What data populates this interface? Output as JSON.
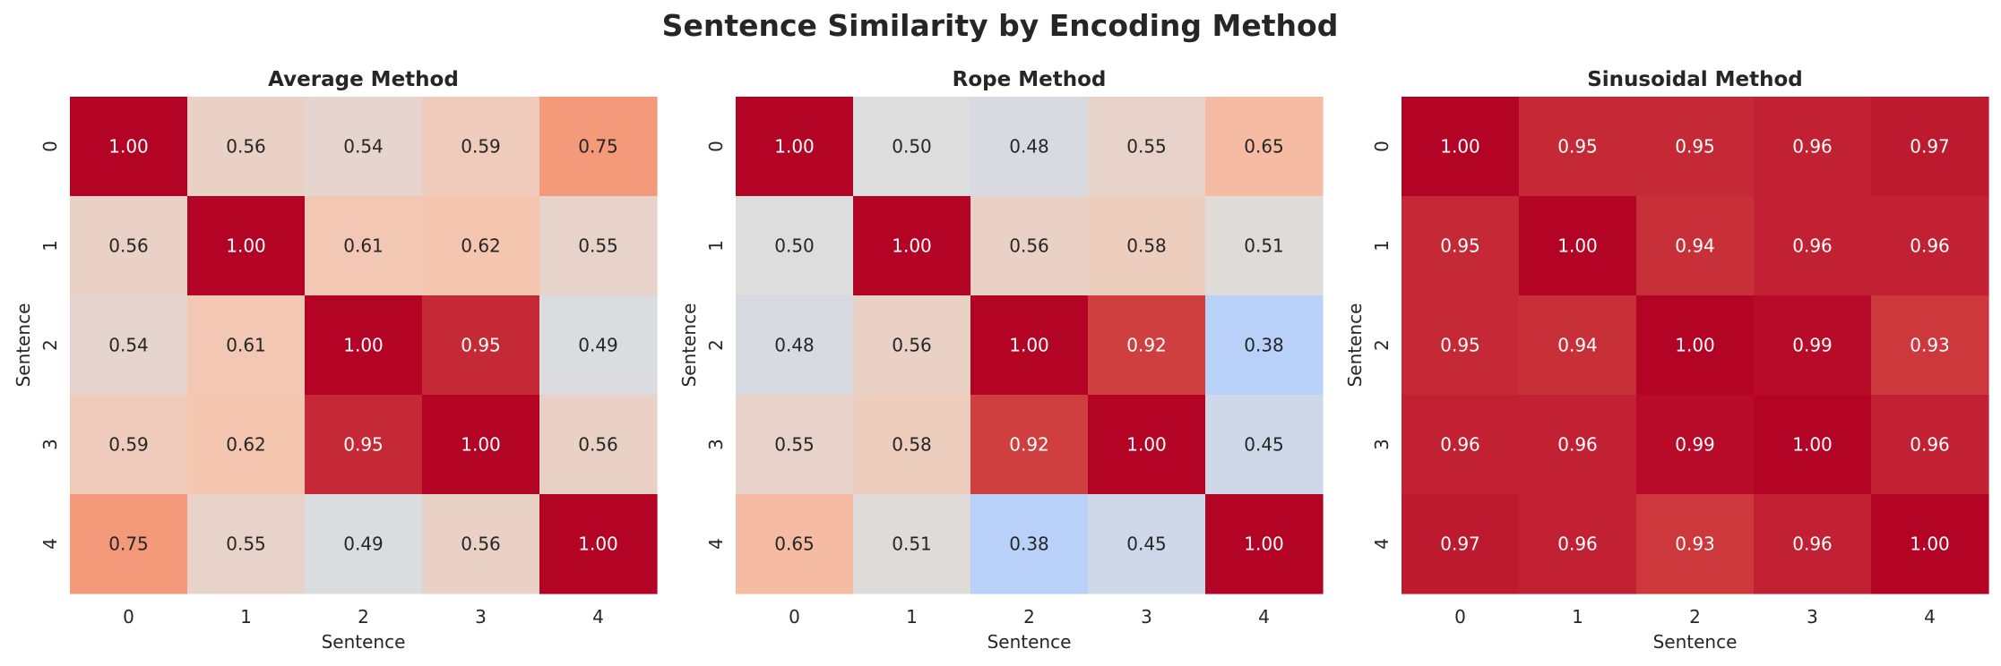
{
  "figure": {
    "title": "Sentence Similarity by Encoding Method"
  },
  "chart_data": [
    {
      "type": "heatmap",
      "title": "Average Method",
      "xlabel": "Sentence",
      "ylabel": "Sentence",
      "x_ticks": [
        "0",
        "1",
        "2",
        "3",
        "4"
      ],
      "y_ticks": [
        "0",
        "1",
        "2",
        "3",
        "4"
      ],
      "values": [
        [
          1.0,
          0.56,
          0.54,
          0.59,
          0.75
        ],
        [
          0.56,
          1.0,
          0.61,
          0.62,
          0.55
        ],
        [
          0.54,
          0.61,
          1.0,
          0.95,
          0.49
        ],
        [
          0.59,
          0.62,
          0.95,
          1.0,
          0.56
        ],
        [
          0.75,
          0.55,
          0.49,
          0.56,
          1.0
        ]
      ],
      "colormap": "coolwarm",
      "color_range": [
        0,
        1
      ],
      "colorbar": false
    },
    {
      "type": "heatmap",
      "title": "Rope Method",
      "xlabel": "Sentence",
      "ylabel": "Sentence",
      "x_ticks": [
        "0",
        "1",
        "2",
        "3",
        "4"
      ],
      "y_ticks": [
        "0",
        "1",
        "2",
        "3",
        "4"
      ],
      "values": [
        [
          1.0,
          0.5,
          0.48,
          0.55,
          0.65
        ],
        [
          0.5,
          1.0,
          0.56,
          0.58,
          0.51
        ],
        [
          0.48,
          0.56,
          1.0,
          0.92,
          0.38
        ],
        [
          0.55,
          0.58,
          0.92,
          1.0,
          0.45
        ],
        [
          0.65,
          0.51,
          0.38,
          0.45,
          1.0
        ]
      ],
      "colormap": "coolwarm",
      "color_range": [
        0,
        1
      ],
      "colorbar": false
    },
    {
      "type": "heatmap",
      "title": "Sinusoidal Method",
      "xlabel": "Sentence",
      "ylabel": "Sentence",
      "x_ticks": [
        "0",
        "1",
        "2",
        "3",
        "4"
      ],
      "y_ticks": [
        "0",
        "1",
        "2",
        "3",
        "4"
      ],
      "values": [
        [
          1.0,
          0.95,
          0.95,
          0.96,
          0.97
        ],
        [
          0.95,
          1.0,
          0.94,
          0.96,
          0.96
        ],
        [
          0.95,
          0.94,
          1.0,
          0.99,
          0.93
        ],
        [
          0.96,
          0.96,
          0.99,
          1.0,
          0.96
        ],
        [
          0.97,
          0.96,
          0.93,
          0.96,
          1.0
        ]
      ],
      "colormap": "coolwarm",
      "color_range": [
        0,
        1
      ],
      "colorbar": false
    }
  ]
}
